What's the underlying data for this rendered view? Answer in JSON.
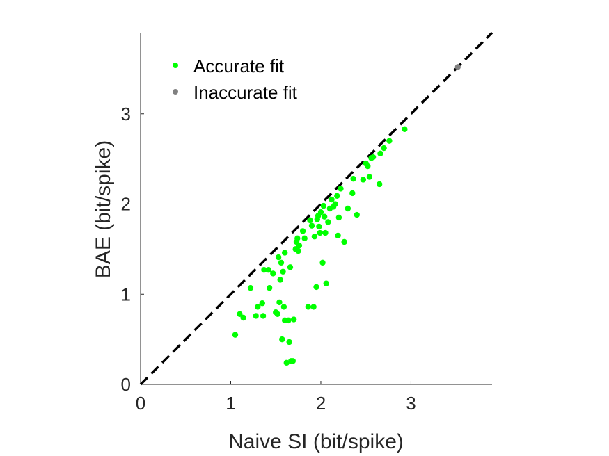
{
  "chart_data": {
    "type": "scatter",
    "xlabel": "Naive SI (bit/spike)",
    "ylabel": "BAE (bit/spike)",
    "xlim": [
      0,
      3.9
    ],
    "ylim": [
      0,
      3.9
    ],
    "xticks": [
      "0",
      "1",
      "2",
      "3"
    ],
    "yticks": [
      "0",
      "1",
      "2",
      "3"
    ],
    "reference_line": {
      "style": "dashed",
      "color": "#000000",
      "slope": 1
    },
    "legend_position": "top-left",
    "series": [
      {
        "name": "Accurate fit",
        "color": "#00ff00",
        "points": [
          [
            1.05,
            0.55
          ],
          [
            1.1,
            0.78
          ],
          [
            1.14,
            0.74
          ],
          [
            1.22,
            1.07
          ],
          [
            1.28,
            0.76
          ],
          [
            1.3,
            0.86
          ],
          [
            1.35,
            0.9
          ],
          [
            1.36,
            0.76
          ],
          [
            1.37,
            1.27
          ],
          [
            1.42,
            1.27
          ],
          [
            1.43,
            1.07
          ],
          [
            1.47,
            1.23
          ],
          [
            1.5,
            0.8
          ],
          [
            1.52,
            0.78
          ],
          [
            1.53,
            1.41
          ],
          [
            1.54,
            0.91
          ],
          [
            1.55,
            1.16
          ],
          [
            1.56,
            1.35
          ],
          [
            1.57,
            0.5
          ],
          [
            1.58,
            1.25
          ],
          [
            1.59,
            0.86
          ],
          [
            1.6,
            1.46
          ],
          [
            1.6,
            0.71
          ],
          [
            1.62,
            0.24
          ],
          [
            1.64,
            0.71
          ],
          [
            1.65,
            0.47
          ],
          [
            1.66,
            1.3
          ],
          [
            1.67,
            0.26
          ],
          [
            1.69,
            0.26
          ],
          [
            1.7,
            0.72
          ],
          [
            1.72,
            1.5
          ],
          [
            1.73,
            1.58
          ],
          [
            1.74,
            1.62
          ],
          [
            1.75,
            1.48
          ],
          [
            1.76,
            1.54
          ],
          [
            1.8,
            1.7
          ],
          [
            1.82,
            1.62
          ],
          [
            1.86,
            0.86
          ],
          [
            1.88,
            1.82
          ],
          [
            1.9,
            1.76
          ],
          [
            1.92,
            0.86
          ],
          [
            1.93,
            1.64
          ],
          [
            1.95,
            1.08
          ],
          [
            1.96,
            1.83
          ],
          [
            1.97,
            1.87
          ],
          [
            1.98,
            1.75
          ],
          [
            1.99,
            1.68
          ],
          [
            2.0,
            1.91
          ],
          [
            2.02,
            1.35
          ],
          [
            2.03,
            1.98
          ],
          [
            2.04,
            1.86
          ],
          [
            2.05,
            1.68
          ],
          [
            2.06,
            1.12
          ],
          [
            2.08,
            1.8
          ],
          [
            2.1,
            1.95
          ],
          [
            2.12,
            2.05
          ],
          [
            2.14,
            1.97
          ],
          [
            2.16,
            2.0
          ],
          [
            2.18,
            2.09
          ],
          [
            2.19,
            1.65
          ],
          [
            2.2,
            1.85
          ],
          [
            2.22,
            2.17
          ],
          [
            2.26,
            1.58
          ],
          [
            2.3,
            1.95
          ],
          [
            2.35,
            2.12
          ],
          [
            2.36,
            2.28
          ],
          [
            2.4,
            1.88
          ],
          [
            2.47,
            2.27
          ],
          [
            2.5,
            2.45
          ],
          [
            2.52,
            2.42
          ],
          [
            2.54,
            2.3
          ],
          [
            2.56,
            2.51
          ],
          [
            2.58,
            2.52
          ],
          [
            2.65,
            2.22
          ],
          [
            2.66,
            2.56
          ],
          [
            2.7,
            2.62
          ],
          [
            2.76,
            2.7
          ],
          [
            2.93,
            2.83
          ]
        ]
      },
      {
        "name": "Inaccurate fit",
        "color": "#808080",
        "points": [
          [
            3.52,
            3.52
          ]
        ]
      }
    ]
  }
}
